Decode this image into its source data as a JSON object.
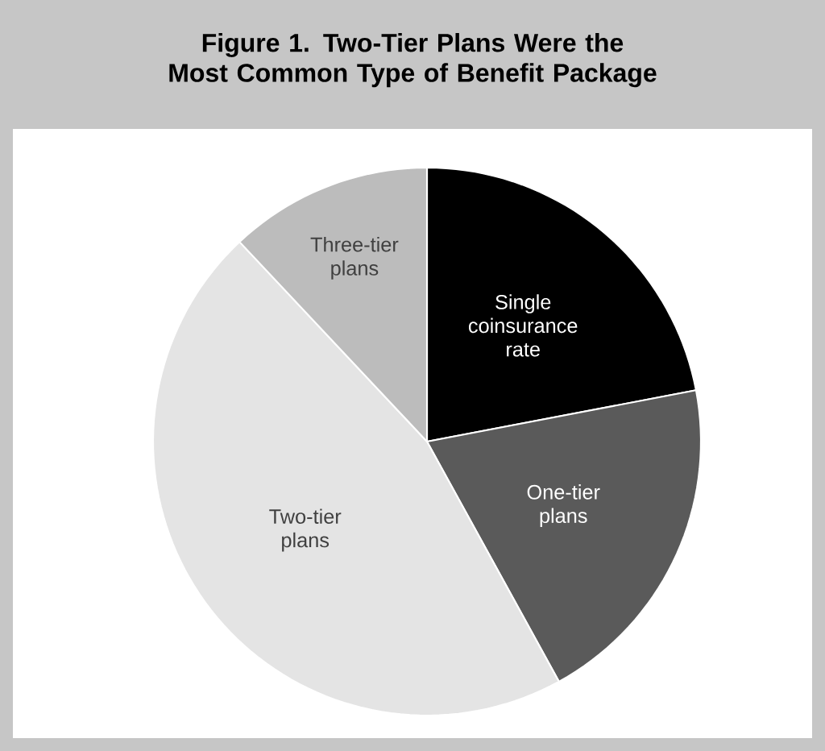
{
  "chart_data": {
    "type": "pie",
    "title": "Figure 1. Two-Tier Plans Were the Most Common Type of Benefit Package",
    "categories": [
      "Single coinsurance rate",
      "One-tier plans",
      "Two-tier plans",
      "Three-tier plans"
    ],
    "values": [
      22,
      20,
      46,
      12
    ],
    "colors": [
      "#000000",
      "#5a5a5a",
      "#e4e4e4",
      "#bcbcbc"
    ]
  }
}
